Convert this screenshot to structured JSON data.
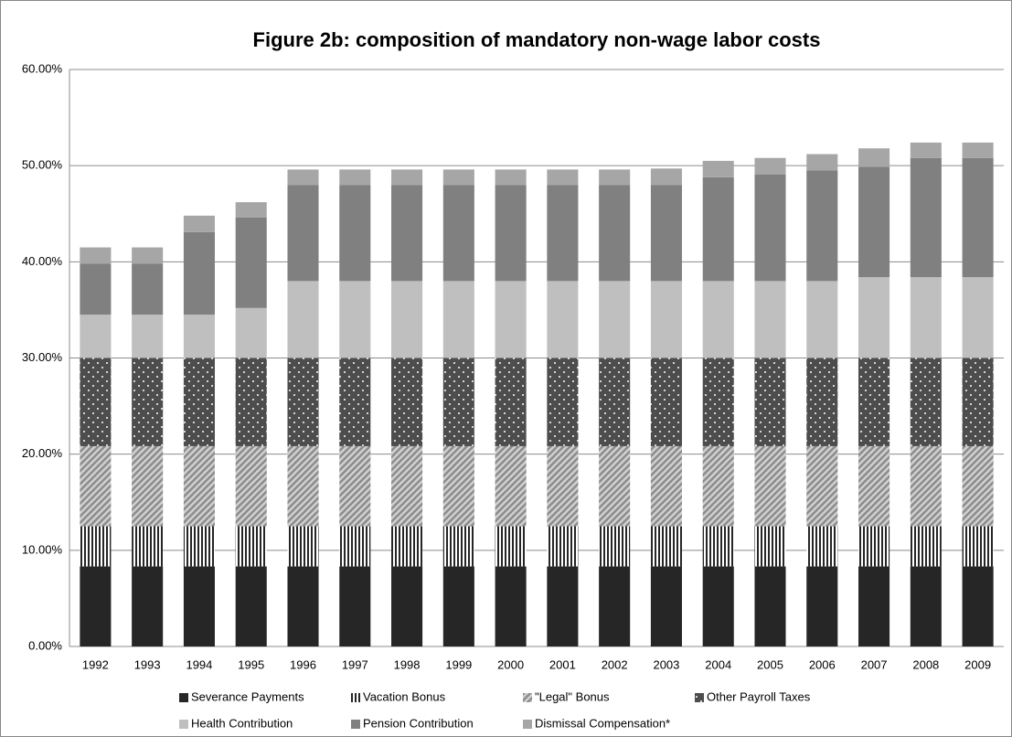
{
  "chart_data": {
    "type": "stacked_bar",
    "title": "Figure 2b: composition of mandatory non-wage labor costs",
    "categories": [
      "1992",
      "1993",
      "1994",
      "1995",
      "1996",
      "1997",
      "1998",
      "1999",
      "2000",
      "2001",
      "2002",
      "2003",
      "2004",
      "2005",
      "2006",
      "2007",
      "2008",
      "2009"
    ],
    "series": [
      {
        "name": "Severance Payments",
        "color": "#262626",
        "pattern": "solid",
        "values": [
          8.33,
          8.33,
          8.33,
          8.33,
          8.33,
          8.33,
          8.33,
          8.33,
          8.33,
          8.33,
          8.33,
          8.33,
          8.33,
          8.33,
          8.33,
          8.33,
          8.33,
          8.33
        ]
      },
      {
        "name": "Vacation Bonus",
        "color": "#262626",
        "pattern": "vertical",
        "values": [
          4.17,
          4.17,
          4.17,
          4.17,
          4.17,
          4.17,
          4.17,
          4.17,
          4.17,
          4.17,
          4.17,
          4.17,
          4.17,
          4.17,
          4.17,
          4.17,
          4.17,
          4.17
        ]
      },
      {
        "name": "\"Legal\" Bonus",
        "color": "#8c8c8c",
        "pattern": "diagonal",
        "values": [
          8.33,
          8.33,
          8.33,
          8.33,
          8.33,
          8.33,
          8.33,
          8.33,
          8.33,
          8.33,
          8.33,
          8.33,
          8.33,
          8.33,
          8.33,
          8.33,
          8.33,
          8.33
        ]
      },
      {
        "name": "Other Payroll Taxes",
        "color": "#4d4d4d",
        "pattern": "dots",
        "values": [
          9.17,
          9.17,
          9.17,
          9.17,
          9.17,
          9.17,
          9.17,
          9.17,
          9.17,
          9.17,
          9.17,
          9.17,
          9.17,
          9.17,
          9.17,
          9.17,
          9.17,
          9.17
        ]
      },
      {
        "name": "Health Contribution",
        "color": "#bfbfbf",
        "pattern": "solid",
        "values": [
          4.5,
          4.5,
          4.5,
          5.2,
          8,
          8,
          8,
          8,
          8,
          8,
          8,
          8,
          8,
          8,
          8,
          8.4,
          8.4,
          8.4
        ]
      },
      {
        "name": "Pension Contribution",
        "color": "#808080",
        "pattern": "solid",
        "values": [
          5.3,
          5.3,
          8.6,
          9.4,
          10,
          10,
          10,
          10,
          10,
          10,
          10,
          10,
          10.8,
          11.1,
          11.5,
          11.5,
          12.4,
          12.4
        ]
      },
      {
        "name": "Dismissal Compensation*",
        "color": "#a6a6a6",
        "pattern": "solid",
        "values": [
          1.7,
          1.7,
          1.7,
          1.6,
          1.6,
          1.6,
          1.6,
          1.6,
          1.6,
          1.6,
          1.6,
          1.7,
          1.7,
          1.7,
          1.7,
          1.9,
          1.6,
          1.6
        ]
      }
    ],
    "ylim": [
      0,
      60
    ],
    "yticks": [
      {
        "value": 0,
        "label": "0.00%"
      },
      {
        "value": 10,
        "label": "10.00%"
      },
      {
        "value": 20,
        "label": "20.00%"
      },
      {
        "value": 30,
        "label": "30.00%"
      },
      {
        "value": 40,
        "label": "40.00%"
      },
      {
        "value": 50,
        "label": "50.00%"
      },
      {
        "value": 60,
        "label": "60.00%"
      }
    ],
    "grid": true
  }
}
